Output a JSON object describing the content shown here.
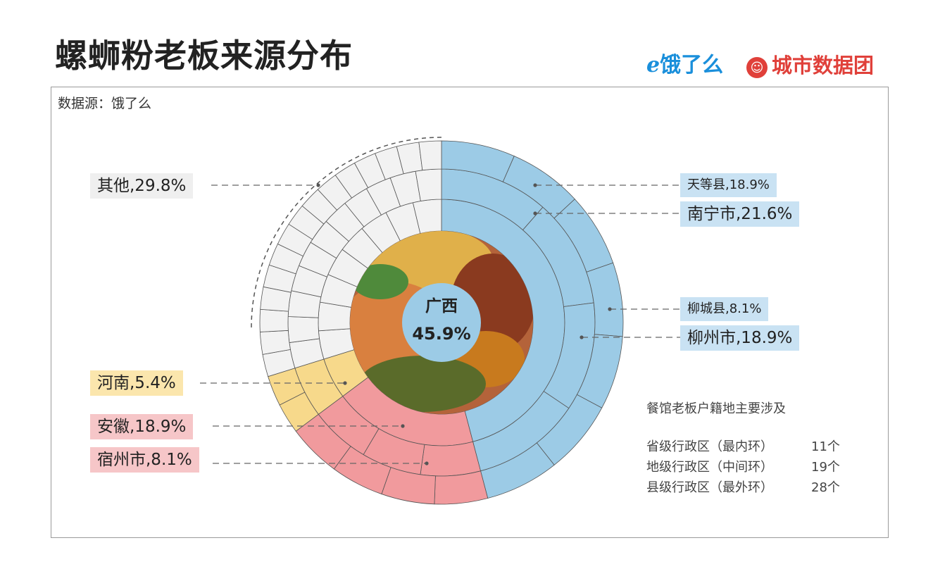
{
  "header": {
    "title": "螺蛳粉老板来源分布",
    "logo_eleme": "饿了么",
    "logo_city": "城市数据团"
  },
  "source": "数据源：饿了么",
  "chart_data": {
    "type": "pie",
    "title": "螺蛳粉老板来源分布",
    "rings": {
      "province": [
        {
          "name": "广西",
          "value": 45.9,
          "color": "#9ccbe6"
        },
        {
          "name": "安徽",
          "value": 18.9,
          "color": "#f19a9d"
        },
        {
          "name": "河南",
          "value": 5.4,
          "color": "#f7d98b"
        },
        {
          "name": "其他",
          "value": 29.8,
          "color": "#f2f2f2"
        }
      ]
    },
    "center": {
      "name": "广西",
      "value": "45.9%"
    },
    "labels": [
      {
        "key": "tiandeng",
        "text": "天等县,18.9%",
        "ring": "county",
        "group": "广西",
        "value": 18.9
      },
      {
        "key": "nanning",
        "text": "南宁市,21.6%",
        "ring": "prefecture",
        "group": "广西",
        "value": 21.6
      },
      {
        "key": "liucheng",
        "text": "柳城县,8.1%",
        "ring": "county",
        "group": "广西",
        "value": 8.1
      },
      {
        "key": "liuzhou",
        "text": "柳州市,18.9%",
        "ring": "prefecture",
        "group": "广西",
        "value": 18.9
      },
      {
        "key": "other",
        "text": "其他,29.8%",
        "ring": "province",
        "group": "其他",
        "value": 29.8
      },
      {
        "key": "henan",
        "text": "河南,5.4%",
        "ring": "province",
        "group": "河南",
        "value": 5.4
      },
      {
        "key": "anhui",
        "text": "安徽,18.9%",
        "ring": "province",
        "group": "安徽",
        "value": 18.9
      },
      {
        "key": "suzhou",
        "text": "宿州市,8.1%",
        "ring": "prefecture",
        "group": "安徽",
        "value": 8.1
      }
    ],
    "subdivisions": {
      "province": 11,
      "prefecture": 19,
      "county": 28
    }
  },
  "notes": {
    "heading": "餐馆老板户籍地主要涉及",
    "rows": [
      {
        "label": "省级行政区（最内环）",
        "count": "11个"
      },
      {
        "label": "地级行政区（中间环）",
        "count": "19个"
      },
      {
        "label": "县级行政区（最外环）",
        "count": "28个"
      }
    ]
  },
  "colors": {
    "blue_label_bg": "#c9e2f3",
    "pink_label_bg": "#f6c6c8",
    "yellow_label_bg": "#fbe6ad",
    "grey_label_bg": "#efefef",
    "cell_stroke": "#555555",
    "center_fill": "#9ccbe6"
  }
}
